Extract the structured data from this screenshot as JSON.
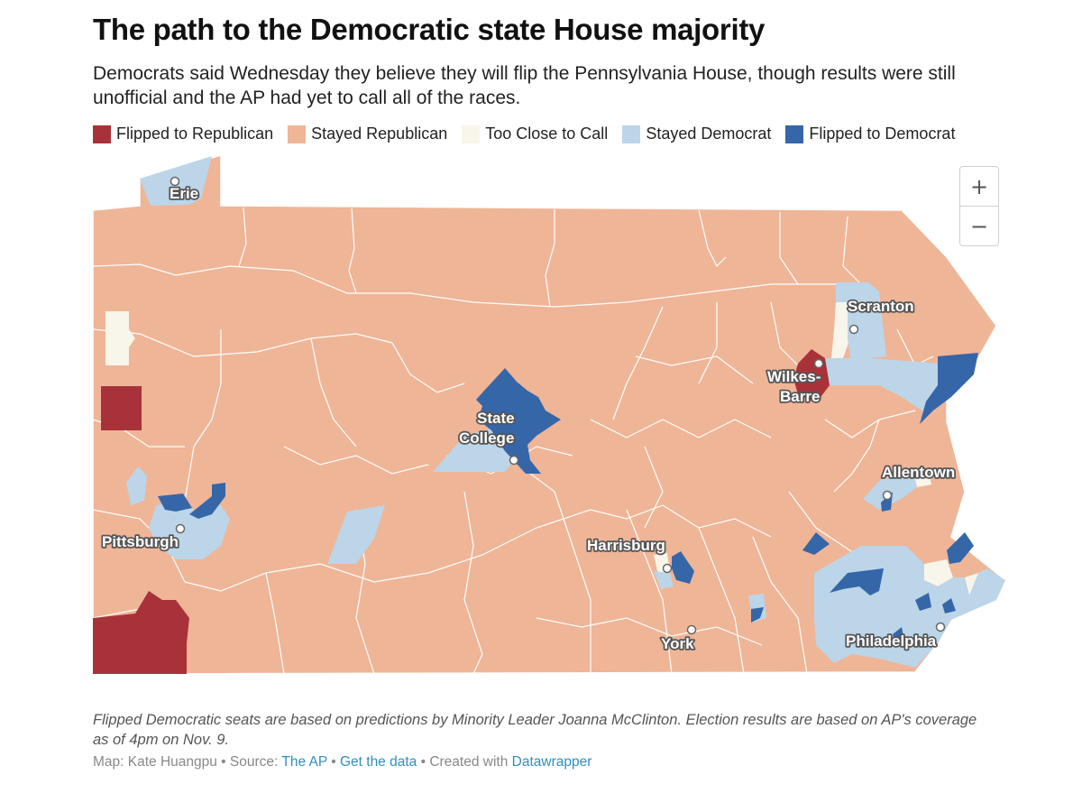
{
  "title": "The path to the Democratic state House majority",
  "description": "Democrats said Wednesday they believe they will flip the Pennsylvania House, though results were still unofficial and the AP had yet to call all of the races.",
  "legend": [
    {
      "label": "Flipped to Republican",
      "color": "#a8323a"
    },
    {
      "label": "Stayed Republican",
      "color": "#efb597"
    },
    {
      "label": "Too Close to Call",
      "color": "#f8f5ea"
    },
    {
      "label": "Stayed Democrat",
      "color": "#bcd5e8"
    },
    {
      "label": "Flipped to Democrat",
      "color": "#3566a8"
    }
  ],
  "colors": {
    "flipped_rep": "#a8323a",
    "stayed_rep": "#efb597",
    "too_close": "#f8f5ea",
    "stayed_dem": "#bcd5e8",
    "flipped_dem": "#3566a8"
  },
  "cities": {
    "erie": "Erie",
    "scranton": "Scranton",
    "wilkes_barre_1": "Wilkes-",
    "wilkes_barre_2": "Barre",
    "state_college_1": "State",
    "state_college_2": "College",
    "allentown": "Allentown",
    "pittsburgh": "Pittsburgh",
    "harrisburg": "Harrisburg",
    "york": "York",
    "philadelphia": "Philadelphia"
  },
  "zoom": {
    "in_icon": "plus-icon",
    "out_icon": "minus-icon",
    "in_label": "+",
    "out_label": "−"
  },
  "note": "Flipped Democratic seats are based on predictions by Minority Leader Joanna McClinton. Election results are based on AP's coverage as of 4pm on Nov. 9.",
  "credits": {
    "map_by": "Map: Kate Huangpu",
    "sep1": " • Source: ",
    "source_link": "The AP",
    "sep2": " • ",
    "data_link": "Get the data",
    "sep3": " • Created with ",
    "tool_link": "Datawrapper"
  }
}
